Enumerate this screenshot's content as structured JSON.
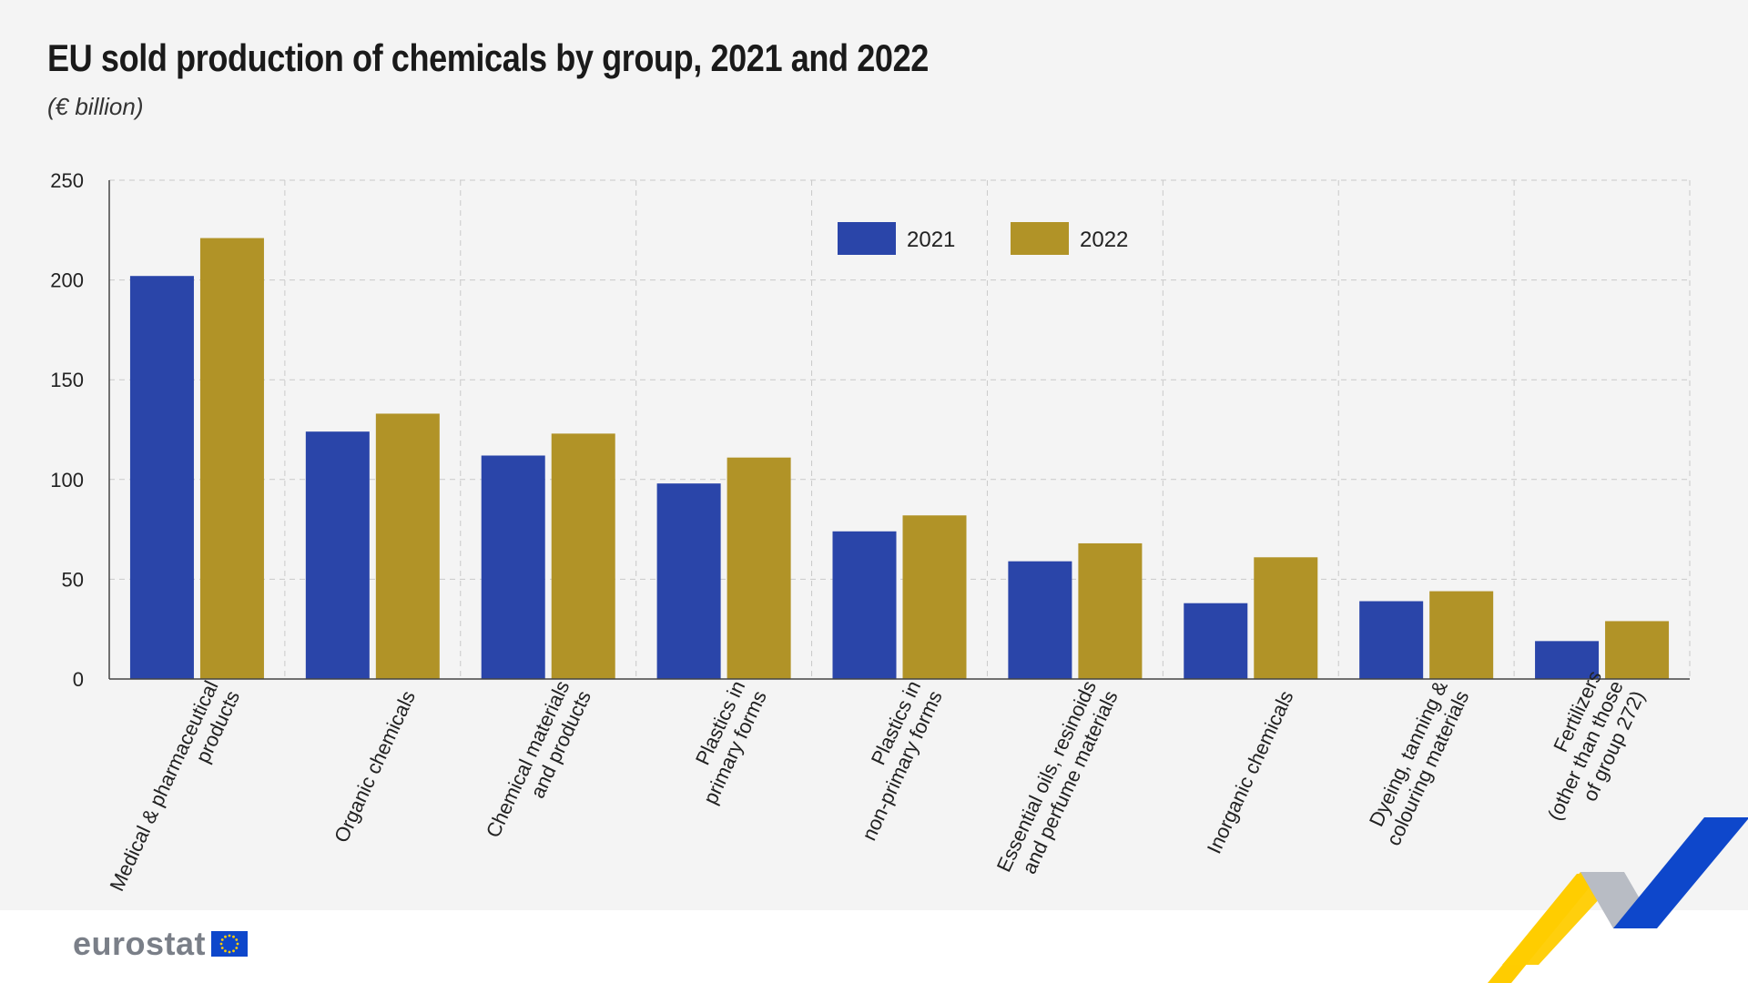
{
  "header": {
    "title": "EU sold production of chemicals by group, 2021 and 2022",
    "subtitle": "(€ billion)"
  },
  "footer": {
    "logo_text": "eurostat"
  },
  "colors": {
    "series_2021": "#2a45a9",
    "series_2022": "#b19327",
    "grid": "#c9c9c9",
    "brand_blue": "#0e47cb",
    "brand_yellow": "#ffcc00"
  },
  "chart_data": {
    "type": "bar",
    "categories": [
      [
        "Medical & pharmaceutical",
        "products"
      ],
      [
        "Organic chemicals"
      ],
      [
        "Chemical materials",
        "and products"
      ],
      [
        "Plastics in",
        "primary forms"
      ],
      [
        "Plastics in",
        "non-primary forms"
      ],
      [
        "Essential oils, resinoids",
        "and perfume materials"
      ],
      [
        "Inorganic chemicals"
      ],
      [
        "Dyeing, tanning &",
        "colouring materials"
      ],
      [
        "Fertilizers",
        "(other than those",
        "of group 272)"
      ]
    ],
    "series": [
      {
        "name": "2021",
        "values": [
          202,
          124,
          112,
          98,
          74,
          59,
          38,
          39,
          19
        ]
      },
      {
        "name": "2022",
        "values": [
          221,
          133,
          123,
          111,
          82,
          68,
          61,
          44,
          29
        ]
      }
    ],
    "ylim": [
      0,
      250
    ],
    "yticks": [
      "0",
      "50",
      "100",
      "150",
      "200",
      "250"
    ],
    "grid": true,
    "legend_position": "top-center"
  }
}
